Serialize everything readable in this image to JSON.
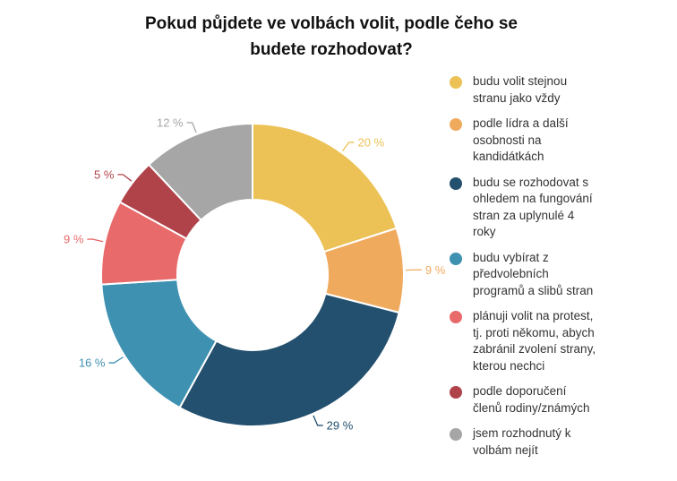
{
  "chart_data": {
    "type": "pie",
    "donut": true,
    "title_lines": [
      "Pokud půjdete ve volbách volit, podle čeho se",
      "budete rozhodovat?"
    ],
    "unit": "%",
    "slices": [
      {
        "name": "budu volit stejnou stranu jako vždy",
        "legend_lines": [
          "budu volit stejnou",
          "stranu jako vždy"
        ],
        "value": 20,
        "label": "20 %",
        "color": "#ecc256"
      },
      {
        "name": "podle lídra a další osobnosti na kandidátkách",
        "legend_lines": [
          "podle lídra a další",
          "osobnosti na",
          "kandidátkách"
        ],
        "value": 9,
        "label": "9 %",
        "color": "#f0aa5e"
      },
      {
        "name": "budu se rozhodovat s ohledem na fungování stran za uplynulé 4 roky",
        "legend_lines": [
          "budu se rozhodovat s",
          "ohledem na fungování",
          "stran za uplynulé 4",
          "roky"
        ],
        "value": 29,
        "label": "29 %",
        "color": "#23506e"
      },
      {
        "name": "budu vybírat z předvolebních programů a slibů stran",
        "legend_lines": [
          "budu vybírat z",
          "předvolebních",
          "programů a slibů stran"
        ],
        "value": 16,
        "label": "16 %",
        "color": "#3f91b1"
      },
      {
        "name": "plánuji volit na protest, tj. proti někomu, abych zabránil zvolení strany, kterou nechci",
        "legend_lines": [
          "plánuji volit na protest,",
          "tj. proti někomu, abych",
          "zabránil zvolení strany,",
          "kterou nechci"
        ],
        "value": 9,
        "label": "9 %",
        "color": "#e86a6a"
      },
      {
        "name": "podle doporučení členů rodiny/známých",
        "legend_lines": [
          "podle doporučení",
          "členů rodiny/známých"
        ],
        "value": 5,
        "label": "5 %",
        "color": "#b0434a"
      },
      {
        "name": "jsem rozhodnutý k volbám nejít",
        "legend_lines": [
          "jsem rozhodnutý k",
          "volbám nejít"
        ],
        "value": 12,
        "label": "12 %",
        "color": "#a6a6a6"
      }
    ],
    "legend_position": "right"
  }
}
